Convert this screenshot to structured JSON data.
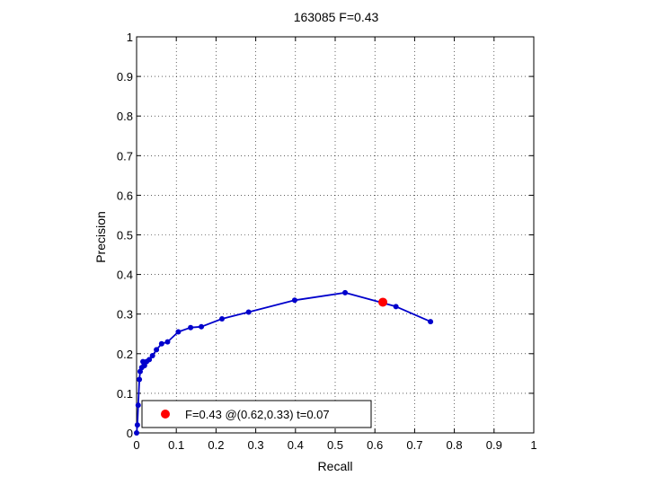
{
  "chart_data": {
    "type": "line",
    "title": "163085 F=0.43",
    "xlabel": "Recall",
    "ylabel": "Precision",
    "xlim": [
      0,
      1
    ],
    "ylim": [
      0,
      1
    ],
    "xticks": [
      "0",
      "0.1",
      "0.2",
      "0.3",
      "0.4",
      "0.5",
      "0.6",
      "0.7",
      "0.8",
      "0.9",
      "1"
    ],
    "yticks": [
      "0",
      "0.1",
      "0.2",
      "0.3",
      "0.4",
      "0.5",
      "0.6",
      "0.7",
      "0.8",
      "0.9",
      "1"
    ],
    "grid": true,
    "series": [
      {
        "color": "#0000cc",
        "points": [
          [
            0.0,
            0.0
          ],
          [
            0.002,
            0.02
          ],
          [
            0.004,
            0.07
          ],
          [
            0.007,
            0.135
          ],
          [
            0.009,
            0.155
          ],
          [
            0.013,
            0.165
          ],
          [
            0.016,
            0.18
          ],
          [
            0.02,
            0.17
          ],
          [
            0.025,
            0.18
          ],
          [
            0.032,
            0.185
          ],
          [
            0.04,
            0.195
          ],
          [
            0.05,
            0.21
          ],
          [
            0.063,
            0.225
          ],
          [
            0.078,
            0.23
          ],
          [
            0.105,
            0.255
          ],
          [
            0.136,
            0.266
          ],
          [
            0.163,
            0.268
          ],
          [
            0.215,
            0.288
          ],
          [
            0.282,
            0.305
          ],
          [
            0.398,
            0.335
          ],
          [
            0.525,
            0.354
          ],
          [
            0.653,
            0.319
          ],
          [
            0.74,
            0.281
          ]
        ]
      }
    ],
    "best_point": {
      "x": 0.62,
      "y": 0.33,
      "color": "#ff0000"
    },
    "legend": {
      "location": "bottom-left",
      "entries": [
        "F=0.43 @(0.62,0.33) t=0.07"
      ]
    }
  }
}
